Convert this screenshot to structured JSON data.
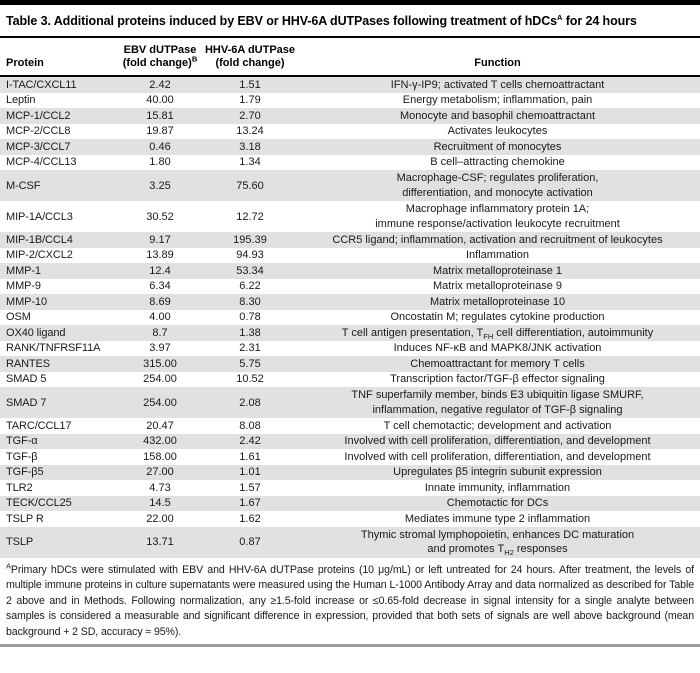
{
  "title": {
    "main": "Table 3. Additional proteins induced by EBV or HHV-6A dUTPases following treatment of hDCs",
    "sup": "A",
    "rest": " for 24 hours"
  },
  "header": {
    "protein": "Protein",
    "ebv_line1": "EBV dUTPase",
    "ebv_line2": "(fold change)",
    "ebv_sup": "B",
    "hhv_line1": "HHV-6A dUTPase",
    "hhv_line2": "(fold change)",
    "function_label": "Function"
  },
  "rows": [
    {
      "protein": "I-TAC/CXCL11",
      "ebv": "2.42",
      "hhv": "1.51",
      "function": "IFN-γ-IP9; activated T cells chemoattractant",
      "lines": 1
    },
    {
      "protein": "Leptin",
      "ebv": "40.00",
      "hhv": "1.79",
      "function": "Energy metabolism; inflammation, pain",
      "lines": 1
    },
    {
      "protein": "MCP-1/CCL2",
      "ebv": "15.81",
      "hhv": "2.70",
      "function": "Monocyte and basophil chemoattractant",
      "lines": 1
    },
    {
      "protein": "MCP-2/CCL8",
      "ebv": "19.87",
      "hhv": "13.24",
      "function": "Activates leukocytes",
      "lines": 1
    },
    {
      "protein": "MCP-3/CCL7",
      "ebv": "0.46",
      "hhv": "3.18",
      "function": "Recruitment of monocytes",
      "lines": 1
    },
    {
      "protein": "MCP-4/CCL13",
      "ebv": "1.80",
      "hhv": "1.34",
      "function": "B cell–attracting chemokine",
      "lines": 1
    },
    {
      "protein": "M-CSF",
      "ebv": "3.25",
      "hhv": "75.60",
      "function": "Macrophage-CSF; regulates proliferation,\ndifferentiation, and monocyte activation",
      "lines": 2
    },
    {
      "protein": "MIP-1A/CCL3",
      "ebv": "30.52",
      "hhv": "12.72",
      "function": "Macrophage inflammatory protein 1A;\nimmune response/activation leukocyte recruitment",
      "lines": 2
    },
    {
      "protein": "MIP-1B/CCL4",
      "ebv": "9.17",
      "hhv": "195.39",
      "function": "CCR5 ligand; inflammation, activation and recruitment of leukocytes",
      "lines": 1
    },
    {
      "protein": "MIP-2/CXCL2",
      "ebv": "13.89",
      "hhv": "94.93",
      "function": "Inflammation",
      "lines": 1
    },
    {
      "protein": "MMP-1",
      "ebv": "12.4",
      "hhv": "53.34",
      "function": "Matrix metalloproteinase 1",
      "lines": 1
    },
    {
      "protein": "MMP-9",
      "ebv": "6.34",
      "hhv": "6.22",
      "function": "Matrix metalloproteinase 9",
      "lines": 1
    },
    {
      "protein": "MMP-10",
      "ebv": "8.69",
      "hhv": "8.30",
      "function": "Matrix metalloproteinase 10",
      "lines": 1
    },
    {
      "protein": "OSM",
      "ebv": "4.00",
      "hhv": "0.78",
      "function": "Oncostatin M; regulates cytokine production",
      "lines": 1
    },
    {
      "protein": "OX40 ligand",
      "ebv": "8.7",
      "hhv": "1.38",
      "function": "T cell antigen presentation, T~FH~ cell differentiation, autoimmunity",
      "lines": 1
    },
    {
      "protein": "RANK/TNFRSF11A",
      "ebv": "3.97",
      "hhv": "2.31",
      "function": "Induces NF-κB and MAPK8/JNK activation",
      "lines": 1
    },
    {
      "protein": "RANTES",
      "ebv": "315.00",
      "hhv": "5.75",
      "function": "Chemoattractant for memory T cells",
      "lines": 1
    },
    {
      "protein": "SMAD 5",
      "ebv": "254.00",
      "hhv": "10.52",
      "function": "Transcription factor/TGF-β effector signaling",
      "lines": 1
    },
    {
      "protein": "SMAD 7",
      "ebv": "254.00",
      "hhv": "2.08",
      "function": "TNF superfamily member, binds E3 ubiquitin ligase SMURF,\ninflammation, negative regulator of TGF-β signaling",
      "lines": 2
    },
    {
      "protein": "TARC/CCL17",
      "ebv": "20.47",
      "hhv": "8.08",
      "function": "T cell chemotactic; development and activation",
      "lines": 1
    },
    {
      "protein": "TGF-α",
      "ebv": "432.00",
      "hhv": "2.42",
      "function": "Involved with cell proliferation, differentiation, and development",
      "lines": 1
    },
    {
      "protein": "TGF-β",
      "ebv": "158.00",
      "hhv": "1.61",
      "function": "Involved with cell proliferation, differentiation, and development",
      "lines": 1
    },
    {
      "protein": "TGF-β5",
      "ebv": "27.00",
      "hhv": "1.01",
      "function": "Upregulates β5 integrin subunit expression",
      "lines": 1
    },
    {
      "protein": "TLR2",
      "ebv": "4.73",
      "hhv": "1.57",
      "function": "Innate immunity, inflammation",
      "lines": 1
    },
    {
      "protein": "TECK/CCL25",
      "ebv": "14.5",
      "hhv": "1.67",
      "function": "Chemotactic for DCs",
      "lines": 1
    },
    {
      "protein": "TSLP R",
      "ebv": "22.00",
      "hhv": "1.62",
      "function": "Mediates immune type 2 inflammation",
      "lines": 1
    },
    {
      "protein": "TSLP",
      "ebv": "13.71",
      "hhv": "0.87",
      "function": "Thymic stromal lymphopoietin, enhances DC maturation\nand promotes T~H2~ responses",
      "lines": 2
    }
  ],
  "footnote": {
    "sup": "A",
    "text": "Primary hDCs were stimulated with EBV and HHV-6A dUTPase proteins (10 μg/mL) or left untreated for 24 hours. After treatment, the levels of multiple immune proteins in culture supernatants were measured using the Human L-1000 Antibody Array and data normalized as described for Table 2 above and in Methods. Following normalization, any ≥1.5-fold increase or ≤0.65-fold decrease in signal intensity for a single analyte between samples is considered a measurable and significant difference in expression, provided that both sets of signals are well above background (mean background + 2 SD, accuracy ≈ 95%)."
  },
  "colors": {
    "row_shade": "#e1e1e1",
    "rule_black": "#000000",
    "bottom_bar": "#9b9b9b"
  }
}
